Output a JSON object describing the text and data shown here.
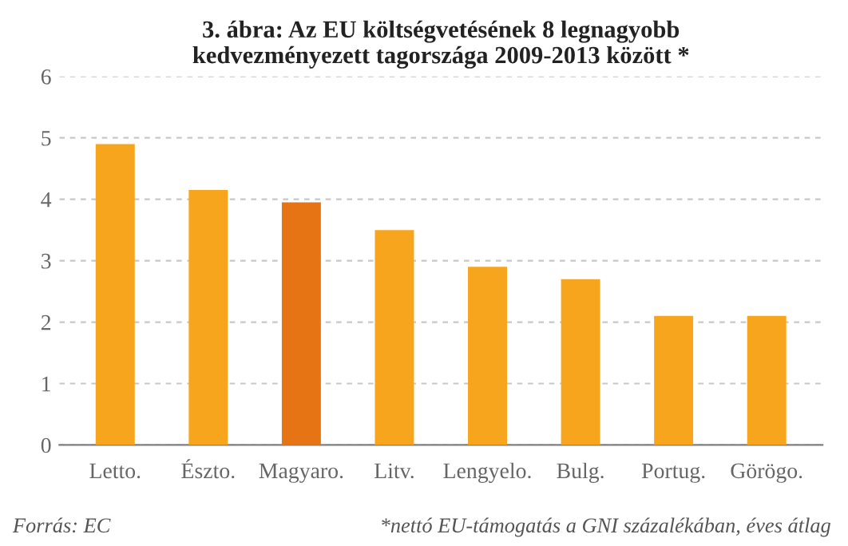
{
  "chart_data": {
    "type": "bar",
    "title": "3. ábra: Az EU költségvetésének 8 legnagyobb\nkedvezményezett tagországa 2009-2013 között *",
    "categories": [
      "Letto.",
      "Észto.",
      "Magyaro.",
      "Litv.",
      "Lengyelo.",
      "Bulg.",
      "Portug.",
      "Görögo."
    ],
    "values": [
      4.9,
      4.15,
      3.95,
      3.5,
      2.9,
      2.7,
      2.1,
      2.1
    ],
    "colors": [
      "#f7a51d",
      "#f7a51d",
      "#e67314",
      "#f7a51d",
      "#f7a51d",
      "#f7a51d",
      "#f7a51d",
      "#f7a51d"
    ],
    "ylim": [
      0,
      6
    ],
    "yticks": [
      0,
      1,
      2,
      3,
      4,
      5,
      6
    ],
    "grid": "y",
    "legend": false,
    "annotations": [
      "Forrás: EC",
      "*nettó EU-támogatás a GNI százalékában, éves átlag"
    ]
  }
}
